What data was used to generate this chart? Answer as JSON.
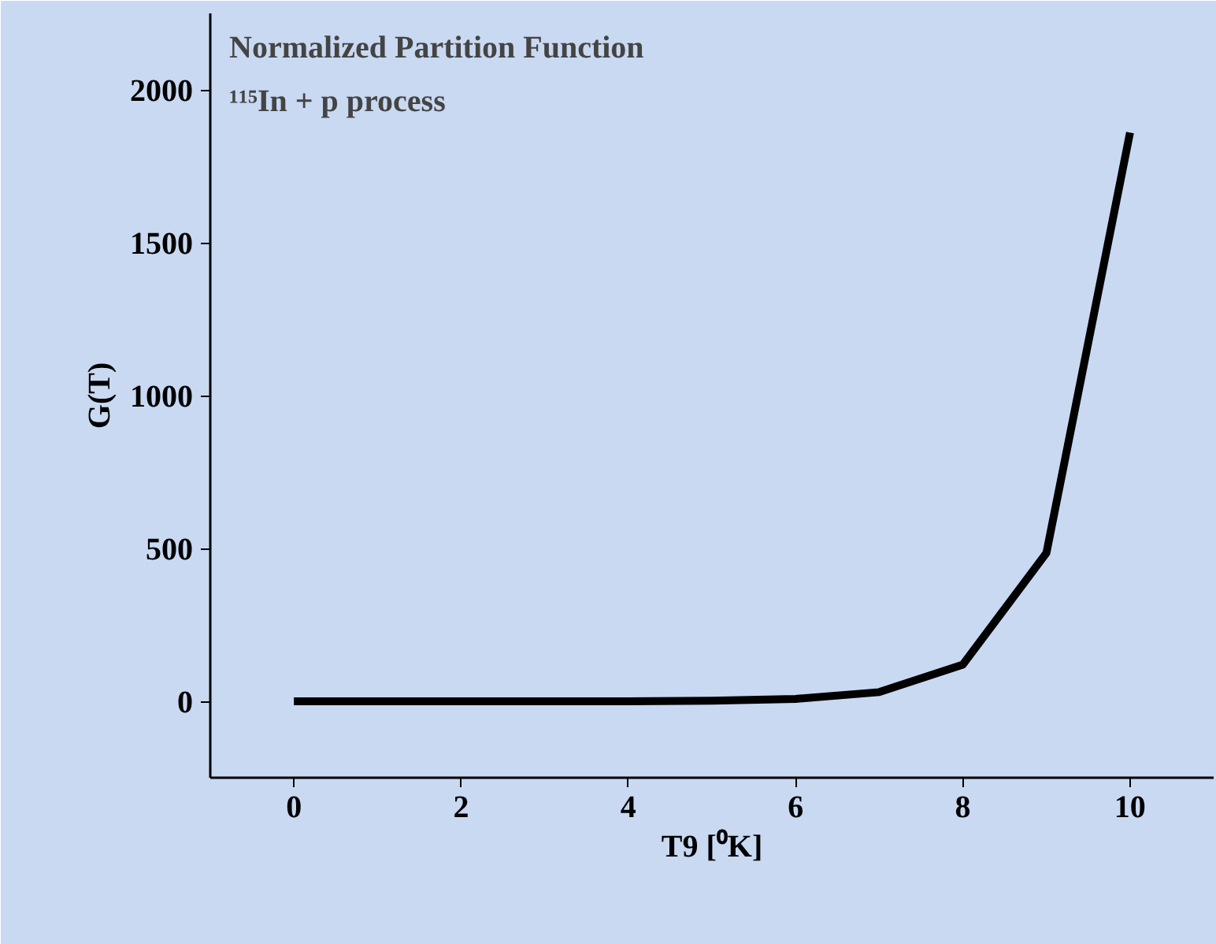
{
  "chart_data": {
    "type": "line",
    "title": "Normalized Partition Function",
    "subtitle": "¹¹⁵In + p process",
    "xlabel": "T9 [⁰K]",
    "ylabel": "G(T)",
    "x": [
      0,
      1,
      2,
      3,
      4,
      5,
      6,
      7,
      8,
      9,
      10
    ],
    "series": [
      {
        "color": "#000000",
        "values": [
          0,
          0,
          0,
          0,
          0,
          2,
          8,
          30,
          120,
          485,
          1860
        ]
      }
    ],
    "xlim": [
      -1,
      11
    ],
    "ylim": [
      -250,
      2250
    ],
    "xticks": [
      0,
      2,
      4,
      6,
      8,
      10
    ],
    "yticks": [
      0,
      500,
      1000,
      1500,
      2000
    ],
    "grid": false,
    "marker": "none",
    "line_style": "solid"
  }
}
